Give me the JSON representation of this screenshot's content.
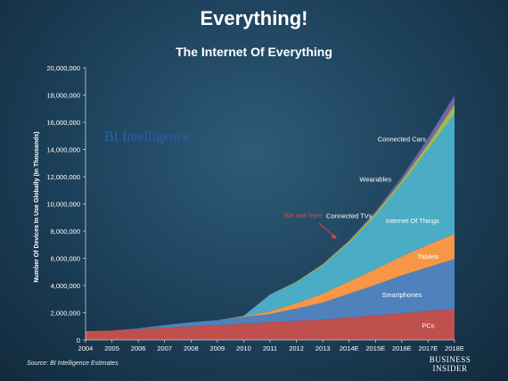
{
  "slide": {
    "title": "Everything!",
    "source": "Source: BI Intelligence Estimates",
    "brand_line1": "BUSINESS",
    "brand_line2": "INSIDER"
  },
  "chart_data": {
    "type": "area",
    "stacked": true,
    "title": "The Internet Of Everything",
    "ylabel": "Number Of Devices In Use Globally (In Thousands)",
    "xlabel": "",
    "ylim": [
      0,
      20000000
    ],
    "yticks": [
      "0",
      "2,000,000",
      "4,000,000",
      "6,000,000",
      "8,000,000",
      "10,000,000",
      "12,000,000",
      "14,000,000",
      "16,000,000",
      "18,000,000",
      "20,000,000"
    ],
    "categories": [
      "2004",
      "2005",
      "2006",
      "2007",
      "2008",
      "2009",
      "2010",
      "2011",
      "2012",
      "2013",
      "2014E",
      "2015E",
      "2016E",
      "2017E",
      "2018E"
    ],
    "watermark": "BI Intelligence",
    "annotation": "We are here",
    "series": [
      {
        "name": "PCs",
        "color": "#c0504d",
        "values": [
          650000,
          700000,
          800000,
          900000,
          1000000,
          1100000,
          1200000,
          1300000,
          1400000,
          1500000,
          1650000,
          1800000,
          1950000,
          2150000,
          2250000
        ]
      },
      {
        "name": "Smartphones",
        "color": "#4f81bd",
        "values": [
          0,
          0,
          50000,
          200000,
          300000,
          350000,
          500000,
          600000,
          900000,
          1250000,
          1750000,
          2250000,
          2800000,
          3200000,
          3700000
        ]
      },
      {
        "name": "Tablets",
        "color": "#f79646",
        "values": [
          0,
          0,
          0,
          0,
          0,
          0,
          50000,
          200000,
          400000,
          650000,
          900000,
          1150000,
          1400000,
          1650000,
          1850000
        ]
      },
      {
        "name": "Internet Of Things",
        "color": "#4bacc6",
        "values": [
          0,
          0,
          0,
          0,
          0,
          0,
          20000,
          1200000,
          1500000,
          2050000,
          2800000,
          3900000,
          5300000,
          7000000,
          8800000
        ]
      },
      {
        "name": "Connected TVs",
        "color": "#9bbb59",
        "values": [
          0,
          0,
          0,
          0,
          0,
          0,
          10000,
          40000,
          70000,
          100000,
          150000,
          200000,
          250000,
          400000,
          700000
        ]
      },
      {
        "name": "Wearables",
        "color": "#8064a2",
        "values": [
          0,
          0,
          0,
          0,
          0,
          0,
          0,
          0,
          10000,
          20000,
          50000,
          100000,
          200000,
          350000,
          550000
        ]
      },
      {
        "name": "Connected Cars",
        "color": "#4e6ba6",
        "values": [
          0,
          0,
          0,
          0,
          0,
          0,
          0,
          10000,
          20000,
          30000,
          40000,
          60000,
          80000,
          110000,
          150000
        ]
      }
    ]
  }
}
